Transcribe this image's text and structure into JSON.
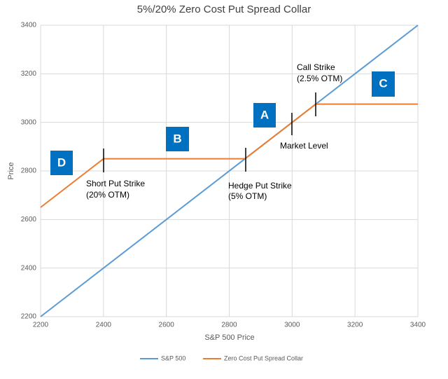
{
  "chart_data": {
    "type": "line",
    "title": "5%/20% Zero Cost Put Spread Collar",
    "x_label": "S&P 500 Price",
    "y_label": "Price",
    "xlim": [
      2200,
      3400
    ],
    "ylim": [
      2200,
      3400
    ],
    "xticks": [
      2200,
      2400,
      2600,
      2800,
      3000,
      3200,
      3400
    ],
    "yticks": [
      2200,
      2400,
      2600,
      2800,
      3000,
      3200,
      3400
    ],
    "grid": true,
    "legend": "bottom",
    "series": [
      {
        "name": "S&P 500",
        "color": "#5b9bd5",
        "x": [
          2200,
          3400
        ],
        "values": [
          2200,
          3400
        ]
      },
      {
        "name": "Zero Cost Put Spread Collar",
        "color": "#ed7d31",
        "x": [
          2200,
          2400,
          2850,
          3075,
          3400
        ],
        "values": [
          2650,
          2850,
          2850,
          3075,
          3075
        ]
      }
    ],
    "annotations": [
      {
        "lines": [
          "Call Strike",
          "(2.5% OTM)"
        ]
      },
      {
        "lines": [
          "Market Level"
        ]
      },
      {
        "lines": [
          "Hedge Put Strike",
          "(5% OTM)"
        ]
      },
      {
        "lines": [
          "Short Put Strike",
          "(20% OTM)"
        ]
      }
    ],
    "regions": [
      "A",
      "B",
      "C",
      "D"
    ]
  }
}
